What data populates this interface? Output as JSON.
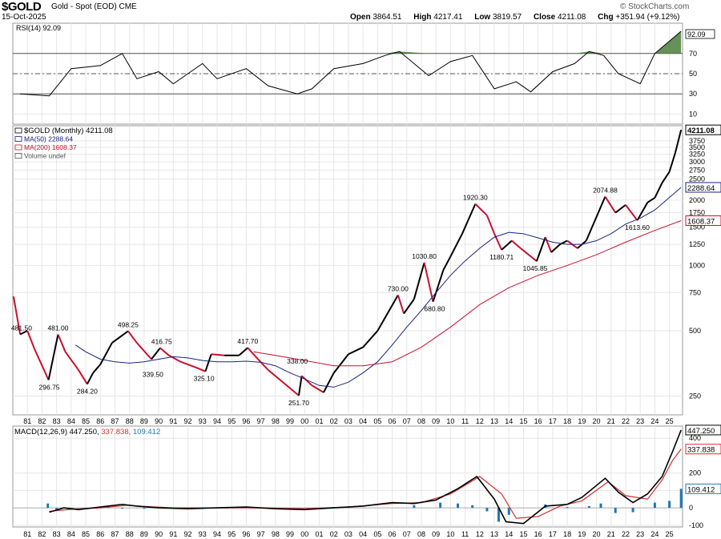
{
  "header": {
    "symbol": "$GOLD",
    "description": "Gold - Spot (EOD) CME",
    "date": "15-Oct-2025",
    "watermark": "© StockCharts.com",
    "open_label": "Open",
    "open": "3864.51",
    "high_label": "High",
    "high": "4217.41",
    "low_label": "Low",
    "low": "3819.57",
    "close_label": "Close",
    "close": "4211.08",
    "chg_label": "Chg",
    "chg": "+351.94 (+9.12%)"
  },
  "colors": {
    "price_up": "#000000",
    "price_down": "#c8102e",
    "ma50": "#1a237e",
    "ma200": "#c8102e",
    "macd": "#000000",
    "signal": "#d32f2f",
    "histogram": "#1f77b4",
    "rsi_overbought_fill": "#4a7c3a",
    "grid": "#e6e6e6",
    "price_tag_bg": "#ffffff"
  },
  "chart_data": [
    {
      "type": "line",
      "panel": "RSI",
      "legend": "RSI(14) 92.09",
      "last_value": "92.09",
      "ylim": [
        0,
        100
      ],
      "y_ticks": [
        "70",
        "50",
        "30",
        "10"
      ],
      "reference_lines": [
        70,
        50,
        30
      ],
      "x": [
        1980.5,
        1982.5,
        1984,
        1986,
        1987.5,
        1988.5,
        1990,
        1991,
        1993,
        1994,
        1996,
        1997.5,
        1999.5,
        2000.5,
        2002,
        2004,
        2005.5,
        2006.5,
        2008.5,
        2010,
        2011.5,
        2013,
        2014.5,
        2015.5,
        2017,
        2018.5,
        2019.5,
        2020.5,
        2021.5,
        2023,
        2024,
        2025.8
      ],
      "values": [
        30,
        28,
        55,
        58,
        70,
        45,
        52,
        40,
        60,
        45,
        55,
        38,
        30,
        35,
        55,
        60,
        68,
        72,
        48,
        62,
        68,
        35,
        42,
        32,
        52,
        60,
        72,
        68,
        50,
        40,
        70,
        92.09
      ]
    },
    {
      "type": "line",
      "panel": "Price",
      "title": "$GOLD (Monthly) 4211.08",
      "scale": "log",
      "ylim": [
        205,
        4400
      ],
      "y_ticks": [
        "3750",
        "3500",
        "3250",
        "3000",
        "2750",
        "2500",
        "2000",
        "1750",
        "1500",
        "1250",
        "1000",
        "750",
        "500",
        "250"
      ],
      "x_ticks": [
        "81",
        "82",
        "83",
        "84",
        "85",
        "86",
        "87",
        "88",
        "89",
        "90",
        "91",
        "92",
        "93",
        "94",
        "95",
        "96",
        "97",
        "98",
        "99",
        "00",
        "01",
        "02",
        "03",
        "04",
        "05",
        "06",
        "07",
        "08",
        "09",
        "10",
        "11",
        "12",
        "13",
        "14",
        "15",
        "16",
        "17",
        "18",
        "19",
        "20",
        "21",
        "22",
        "23",
        "24",
        "25"
      ],
      "series": [
        {
          "name": "$GOLD (Monthly) 4211.08",
          "x": [
            1980.05,
            1980.5,
            1981,
            1981.5,
            1982.45,
            1983.1,
            1983.6,
            1984.5,
            1985.1,
            1985.5,
            1986,
            1986.8,
            1987.9,
            1988.5,
            1989.5,
            1990.1,
            1990.7,
            1991.5,
            1992.5,
            1993.2,
            1993.6,
            1994.5,
            1995.5,
            1996.1,
            1996.8,
            1997.5,
            1998.5,
            1999.6,
            1999.8,
            2000.5,
            2001.3,
            2002,
            2003,
            2004,
            2005,
            2006.4,
            2006.8,
            2007.5,
            2008.2,
            2008.8,
            2009.5,
            2010,
            2010.8,
            2011.7,
            2012.5,
            2013,
            2013.5,
            2014.2,
            2014.8,
            2015.9,
            2016.5,
            2016.9,
            2017.5,
            2018,
            2018.7,
            2019.3,
            2020.6,
            2021.3,
            2022,
            2022.8,
            2023.5,
            2024,
            2024.5,
            2025,
            2025.4,
            2025.8
          ],
          "values": [
            720,
            481.5,
            500,
            410,
            296.75,
            481,
            400,
            330,
            284.2,
            320,
            350,
            440,
            498.25,
            440,
            370,
            416.75,
            385,
            360,
            340,
            325.1,
            390,
            385,
            385,
            417.7,
            370,
            330,
            290,
            251.7,
            310,
            280,
            260,
            320,
            390,
            420,
            500,
            730,
            600,
            700,
            1030.8,
            680.8,
            950,
            1100,
            1400,
            1920.3,
            1700,
            1400,
            1180.71,
            1300,
            1200,
            1045.85,
            1350,
            1150,
            1250,
            1300,
            1200,
            1300,
            2074.88,
            1750,
            1900,
            1613.6,
            1950,
            2050,
            2400,
            2700,
            3300,
            4211.08
          ]
        },
        {
          "name": "MA(50) 2288.64",
          "x": [
            1984.3,
            1985,
            1986,
            1987,
            1988,
            1989,
            1990,
            1991,
            1992,
            1993,
            1994,
            1995,
            1996,
            1997,
            1998,
            1999,
            2000,
            2001,
            2002,
            2003,
            2004,
            2005,
            2006,
            2007,
            2008,
            2009,
            2010,
            2011,
            2012,
            2013,
            2014,
            2015,
            2016,
            2017,
            2018,
            2019,
            2020,
            2021,
            2022,
            2023,
            2024,
            2025.8
          ],
          "values": [
            430,
            400,
            370,
            360,
            355,
            360,
            370,
            380,
            375,
            365,
            360,
            360,
            362,
            358,
            345,
            320,
            300,
            280,
            275,
            290,
            320,
            360,
            430,
            520,
            620,
            750,
            900,
            1050,
            1200,
            1350,
            1420,
            1400,
            1340,
            1280,
            1250,
            1250,
            1300,
            1400,
            1550,
            1650,
            1800,
            2288.64
          ]
        },
        {
          "name": "MA(200) 1608.37",
          "x": [
            1996.5,
            1998,
            2000,
            2002,
            2004,
            2006,
            2008,
            2010,
            2012,
            2014,
            2016,
            2018,
            2020,
            2022,
            2024,
            2025.8
          ],
          "values": [
            400,
            385,
            365,
            345,
            345,
            360,
            420,
            520,
            660,
            790,
            900,
            1000,
            1120,
            1280,
            1450,
            1608.37
          ]
        }
      ],
      "annotations": [
        {
          "x": 1980.6,
          "y": 481.5,
          "label": "481.50"
        },
        {
          "x": 1982.5,
          "y": 296.75,
          "label": "296.75"
        },
        {
          "x": 1983.1,
          "y": 481,
          "label": "481.00"
        },
        {
          "x": 1985.1,
          "y": 284.2,
          "label": "284.20"
        },
        {
          "x": 1987.9,
          "y": 498.25,
          "label": "498.25"
        },
        {
          "x": 1989.6,
          "y": 339.5,
          "label": "339.50"
        },
        {
          "x": 1990.2,
          "y": 416.75,
          "label": "416.75"
        },
        {
          "x": 1993.1,
          "y": 325.1,
          "label": "325.10"
        },
        {
          "x": 1996.1,
          "y": 417.7,
          "label": "417.70"
        },
        {
          "x": 1999.5,
          "y": 338,
          "label": "338.00"
        },
        {
          "x": 1999.6,
          "y": 251.7,
          "label": "251.70"
        },
        {
          "x": 2006.4,
          "y": 730,
          "label": "730.00"
        },
        {
          "x": 2008.2,
          "y": 1030.8,
          "label": "1030.80"
        },
        {
          "x": 2008.9,
          "y": 680.8,
          "label": "680.80"
        },
        {
          "x": 2011.7,
          "y": 1920.3,
          "label": "1920.30"
        },
        {
          "x": 2013.5,
          "y": 1180.71,
          "label": "1180.71"
        },
        {
          "x": 2015.8,
          "y": 1045.85,
          "label": "1045.85"
        },
        {
          "x": 2020.6,
          "y": 2074.88,
          "label": "2074.88"
        },
        {
          "x": 2022.8,
          "y": 1613.6,
          "label": "1613.60"
        }
      ],
      "legend": [
        "$GOLD (Monthly) 4211.08",
        "MA(50) 2288.64",
        "MA(200) 1608.37",
        "Volume undef"
      ],
      "price_tags": [
        "4211.08",
        "2288.64",
        "1608.37"
      ]
    },
    {
      "type": "line",
      "panel": "MACD",
      "legend_prefix": "MACD(12,26,9)",
      "macd_value": "447.250",
      "signal_value": "337.838",
      "hist_value": "109.412",
      "ylim": [
        -110,
        470
      ],
      "y_ticks": [
        "400",
        "200",
        "100",
        "0",
        "-100"
      ],
      "x_ticks": [
        "81",
        "82",
        "83",
        "84",
        "85",
        "86",
        "87",
        "88",
        "89",
        "90",
        "91",
        "92",
        "93",
        "94",
        "95",
        "96",
        "97",
        "98",
        "99",
        "00",
        "01",
        "02",
        "03",
        "04",
        "05",
        "06",
        "07",
        "08",
        "09",
        "10",
        "11",
        "12",
        "13",
        "14",
        "15",
        "16",
        "17",
        "18",
        "19",
        "20",
        "21",
        "22",
        "23",
        "24",
        "25"
      ],
      "series": [
        {
          "name": "MACD",
          "x": [
            1982.5,
            1983.5,
            1984.5,
            1986,
            1987.5,
            1988.5,
            1990,
            1992,
            1994,
            1996,
            1998,
            2000,
            2002,
            2004,
            2006,
            2007.5,
            2009,
            2010.5,
            2011.8,
            2013,
            2013.8,
            2015,
            2016.5,
            2018,
            2019,
            2020.6,
            2021.5,
            2022.5,
            2023.5,
            2024.5,
            2025.2,
            2025.8
          ],
          "values": [
            -25,
            0,
            -10,
            5,
            20,
            10,
            0,
            -5,
            0,
            5,
            -5,
            -10,
            0,
            10,
            30,
            25,
            45,
            110,
            180,
            50,
            -80,
            -90,
            10,
            20,
            60,
            170,
            90,
            30,
            80,
            180,
            320,
            447.25
          ]
        },
        {
          "name": "Signal",
          "x": [
            1982.5,
            1984,
            1986,
            1987.8,
            1989,
            1991,
            1994,
            1997,
            2000,
            2003,
            2006,
            2008,
            2010,
            2012,
            2013.5,
            2014.5,
            2016,
            2017.5,
            2019,
            2020.8,
            2022,
            2023.5,
            2024.5,
            2025.2,
            2025.8
          ],
          "values": [
            -20,
            -8,
            0,
            15,
            8,
            0,
            0,
            0,
            -5,
            5,
            25,
            30,
            80,
            180,
            80,
            -60,
            -50,
            10,
            40,
            150,
            70,
            50,
            160,
            270,
            337.838
          ]
        }
      ],
      "histogram": {
        "x": [
          1982.4,
          1983,
          1986.5,
          1987.5,
          1989,
          1990,
          1998,
          2003,
          2007.5,
          2009.3,
          2010.5,
          2011.5,
          2012.5,
          2013.3,
          2014,
          2016.5,
          2018,
          2019.5,
          2020.3,
          2021.3,
          2022.5,
          2024,
          2025,
          2025.8
        ],
        "values": [
          25,
          -10,
          10,
          -5,
          -5,
          5,
          -5,
          5,
          15,
          30,
          25,
          15,
          -20,
          -80,
          -40,
          20,
          5,
          10,
          25,
          -30,
          -25,
          30,
          40,
          109.412
        ]
      }
    }
  ]
}
